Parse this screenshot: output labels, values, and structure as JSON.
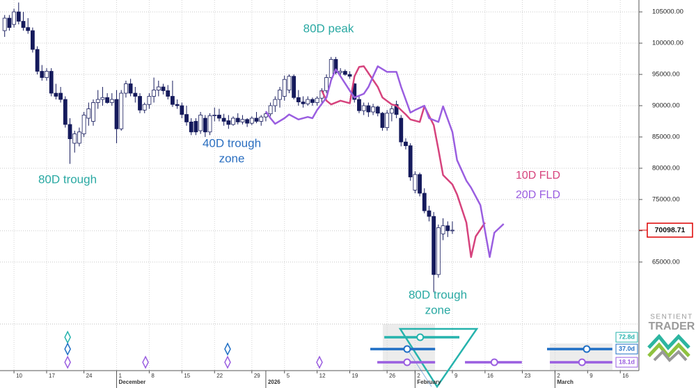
{
  "chart_data": {
    "type": "candlestick",
    "xlim": [
      -3,
      134
    ],
    "ylim": [
      55200,
      106900
    ],
    "grid": true,
    "x": [
      -2,
      -1,
      0,
      1,
      2,
      3,
      4,
      5,
      6,
      7,
      8,
      9,
      10,
      11,
      12,
      13,
      14,
      15,
      16,
      17,
      18,
      19,
      20,
      21,
      22,
      23,
      24,
      25,
      26,
      27,
      28,
      29,
      30,
      31,
      32,
      33,
      34,
      35,
      36,
      37,
      38,
      39,
      40,
      41,
      42,
      43,
      44,
      45,
      46,
      47,
      48,
      49,
      50,
      51,
      52,
      53,
      54,
      55,
      56,
      57,
      58,
      59,
      60,
      61,
      62,
      63,
      64,
      65,
      66,
      67,
      68,
      69,
      70,
      71,
      72,
      73,
      74,
      75,
      76,
      77,
      78,
      79,
      80,
      81,
      82,
      83,
      84,
      85,
      86,
      87,
      88,
      89,
      90,
      91,
      92,
      93,
      94
    ],
    "open": [
      102000,
      104000,
      103000,
      105000,
      103500,
      102500,
      102000,
      99000,
      95500,
      94500,
      95500,
      92000,
      92000,
      91000,
      87000,
      84000,
      84000,
      85500,
      88000,
      87500,
      90500,
      91000,
      91300,
      90500,
      91000,
      86300,
      92000,
      93500,
      92000,
      91500,
      89300,
      90200,
      91500,
      92500,
      93000,
      92400,
      91500,
      90200,
      90000,
      88600,
      87400,
      87500,
      86000,
      88000,
      85800,
      88400,
      88500,
      88000,
      87600,
      87000,
      88000,
      87400,
      87800,
      87200,
      88000,
      87500,
      88200,
      88700,
      90000,
      91000,
      91500,
      92500,
      94700,
      91300,
      90600,
      90300,
      91000,
      90500,
      91200,
      92400,
      94500,
      97400,
      95300,
      95500,
      95000,
      93500,
      91000,
      89200,
      90000,
      89000,
      89800,
      88800,
      86500,
      88800,
      90200,
      88000,
      84200,
      83600,
      76500,
      79000,
      76000,
      73200,
      72300,
      63000,
      69500,
      70800,
      70000
    ],
    "high": [
      104500,
      104500,
      105500,
      106500,
      105000,
      104000,
      102500,
      99500,
      96500,
      96000,
      96000,
      93500,
      93000,
      91500,
      88000,
      86000,
      86500,
      89000,
      90500,
      91000,
      92500,
      93000,
      92000,
      92000,
      92500,
      92500,
      94000,
      94300,
      93000,
      92000,
      90500,
      92000,
      94500,
      94000,
      93500,
      93300,
      94000,
      91000,
      90500,
      90000,
      88000,
      88000,
      89000,
      88500,
      88800,
      89700,
      89500,
      88700,
      88500,
      88300,
      88800,
      88500,
      88000,
      88300,
      89000,
      88500,
      89000,
      90500,
      91500,
      93000,
      94800,
      95000,
      95000,
      92500,
      91500,
      91500,
      91300,
      91500,
      92800,
      95000,
      97800,
      97800,
      96000,
      95800,
      95500,
      93600,
      91500,
      90500,
      90500,
      90300,
      90000,
      89000,
      89300,
      90000,
      90800,
      88500,
      84800,
      84000,
      79500,
      79300,
      76800,
      74000,
      73000,
      71000,
      72000,
      71500,
      71500
    ],
    "low": [
      101000,
      102000,
      102500,
      103000,
      102000,
      101500,
      98500,
      95000,
      94000,
      94000,
      91500,
      91000,
      90500,
      86500,
      80700,
      82500,
      83500,
      85000,
      86800,
      86800,
      89500,
      90000,
      90300,
      90000,
      84000,
      86000,
      91300,
      91500,
      90500,
      88800,
      88800,
      89500,
      90500,
      91500,
      91800,
      91000,
      89800,
      89500,
      88000,
      86800,
      85300,
      85300,
      85500,
      85000,
      85300,
      87500,
      87500,
      86800,
      86300,
      86800,
      87000,
      87000,
      86600,
      86900,
      87200,
      86800,
      87500,
      88300,
      89000,
      89700,
      90800,
      92000,
      91000,
      90000,
      89700,
      90000,
      90000,
      90000,
      90500,
      92000,
      94200,
      95000,
      94800,
      94800,
      94300,
      90500,
      88800,
      88500,
      88200,
      88500,
      88300,
      86000,
      86000,
      87500,
      88000,
      83500,
      83000,
      78000,
      76000,
      75500,
      72800,
      71500,
      60200,
      62500,
      68500,
      69000,
      69500
    ],
    "close": [
      104000,
      102500,
      105000,
      103500,
      102500,
      102000,
      99000,
      95500,
      94500,
      95500,
      92000,
      91500,
      91000,
      87000,
      84700,
      85500,
      85800,
      88500,
      89500,
      90500,
      91000,
      91300,
      90500,
      91000,
      86300,
      92000,
      93500,
      92000,
      91500,
      89300,
      90200,
      91500,
      92500,
      93000,
      92400,
      91500,
      90200,
      90000,
      88600,
      87400,
      85800,
      85800,
      88500,
      85800,
      88400,
      88500,
      88000,
      87500,
      87000,
      88000,
      87400,
      87800,
      87200,
      88000,
      87500,
      88200,
      88700,
      90000,
      91000,
      92500,
      94200,
      94700,
      91300,
      90600,
      90300,
      91000,
      90500,
      91200,
      92400,
      94500,
      97400,
      95300,
      95500,
      95000,
      94700,
      91000,
      89200,
      90000,
      89000,
      89800,
      88800,
      86500,
      88800,
      89500,
      88600,
      84200,
      83600,
      78600,
      79000,
      76000,
      73200,
      72300,
      63000,
      70500,
      70800,
      70000,
      70098.71
    ],
    "up_color": "#ffffff",
    "down_color": "#151a5c",
    "series": [
      {
        "name": "10D FLD",
        "color": "#d6437d",
        "x": [
          66,
          67,
          68,
          70,
          72,
          73,
          74,
          75,
          76,
          78,
          79,
          81,
          82,
          84,
          85,
          87,
          88,
          90,
          91,
          92,
          94,
          95,
          97,
          98,
          99,
          101
        ],
        "values": [
          92400,
          90800,
          90200,
          90800,
          90400,
          94700,
          96200,
          96300,
          95200,
          93000,
          91300,
          90200,
          90000,
          88600,
          87800,
          87400,
          89900,
          86900,
          83000,
          78900,
          77400,
          75800,
          71300,
          65800,
          69100,
          71300
        ]
      },
      {
        "name": "20D FLD",
        "color": "#9a5ee0",
        "x": [
          54,
          55,
          56,
          58,
          59,
          61,
          63,
          64,
          65,
          67,
          68,
          69,
          70,
          72,
          73,
          75,
          76,
          77,
          78,
          80,
          82,
          83,
          85,
          86,
          88,
          89,
          91,
          92,
          94,
          95,
          97,
          98,
          100,
          102,
          103,
          105
        ],
        "values": [
          89100,
          88000,
          87100,
          88000,
          88600,
          87800,
          88200,
          88000,
          89300,
          91300,
          94100,
          95800,
          94700,
          92400,
          91300,
          91900,
          93000,
          94700,
          96300,
          95400,
          95400,
          93000,
          88900,
          89300,
          90000,
          88000,
          87400,
          89900,
          85800,
          81300,
          78000,
          76900,
          74100,
          65800,
          69700,
          71100
        ]
      }
    ],
    "yticks": [
      {
        "value": 65000,
        "label": "65000.00"
      },
      {
        "value": 70000,
        "label": "70000.00"
      },
      {
        "value": 75000,
        "label": "75000.00"
      },
      {
        "value": 80000,
        "label": "80000.00"
      },
      {
        "value": 85000,
        "label": "85000.00"
      },
      {
        "value": 90000,
        "label": "90000.00"
      },
      {
        "value": 95000,
        "label": "95000.00"
      },
      {
        "value": 100000,
        "label": "100000.00"
      },
      {
        "value": 105000,
        "label": "105000.00"
      }
    ],
    "xticks": [
      {
        "value": 0,
        "label": "10"
      },
      {
        "value": 7,
        "label": "17"
      },
      {
        "value": 15,
        "label": "24"
      },
      {
        "value": 22,
        "label": "1"
      },
      {
        "value": 29,
        "label": "8"
      },
      {
        "value": 36,
        "label": "15"
      },
      {
        "value": 43,
        "label": "22"
      },
      {
        "value": 51,
        "label": "29"
      },
      {
        "value": 58,
        "label": "5"
      },
      {
        "value": 65,
        "label": "12"
      },
      {
        "value": 72,
        "label": "19"
      },
      {
        "value": 80,
        "label": "26"
      },
      {
        "value": 86,
        "label": "2"
      },
      {
        "value": 94,
        "label": "9"
      },
      {
        "value": 101,
        "label": "16"
      },
      {
        "value": 109,
        "label": "23"
      },
      {
        "value": 116,
        "label": "2"
      },
      {
        "value": 123,
        "label": "9"
      },
      {
        "value": 130,
        "label": "16"
      }
    ],
    "period_labels": [
      {
        "value": 22,
        "label": "December"
      },
      {
        "value": 54,
        "label": "2026"
      },
      {
        "value": 86,
        "label": "February"
      },
      {
        "value": 116,
        "label": "March"
      }
    ],
    "last_price": 70098.71,
    "annotations": [
      {
        "lines": [
          "80D peak"
        ],
        "color": "#2aa9a3"
      },
      {
        "lines": [
          "80D trough"
        ],
        "color": "#2aa9a3"
      },
      {
        "lines": [
          "40D trough",
          "zone"
        ],
        "color": "#2b6fc0"
      },
      {
        "lines": [
          "80D trough",
          "zone"
        ],
        "color": "#2aa9a3"
      }
    ],
    "cycles": [
      {
        "label": "72.8d",
        "color": "#26b3ad",
        "troughs": [
          11.5
        ],
        "projections": [
          {
            "range": [
              79.4,
              95.5
            ],
            "center": 87.1
          }
        ]
      },
      {
        "label": "37.0d",
        "color": "#1f6fc5",
        "troughs": [
          11.5,
          45.8
        ],
        "projections": [
          {
            "range": [
              76.4,
              90.3
            ],
            "center": 84.3
          },
          {
            "range": [
              114.3,
              128.3
            ],
            "center": 122.8
          }
        ]
      },
      {
        "label": "18.1d",
        "color": "#9a5ee0",
        "troughs": [
          11.5,
          28.2,
          45.8,
          65.5
        ],
        "projections": [
          {
            "range": [
              77.9,
              90.3
            ],
            "center": 84.3
          },
          {
            "range": [
              96.7,
              108.9
            ],
            "center": 103.0
          },
          {
            "range": [
              114.9,
              128.3
            ],
            "center": 121.8
          }
        ]
      }
    ],
    "brand": [
      "SENTIENT",
      "TRADER"
    ]
  }
}
